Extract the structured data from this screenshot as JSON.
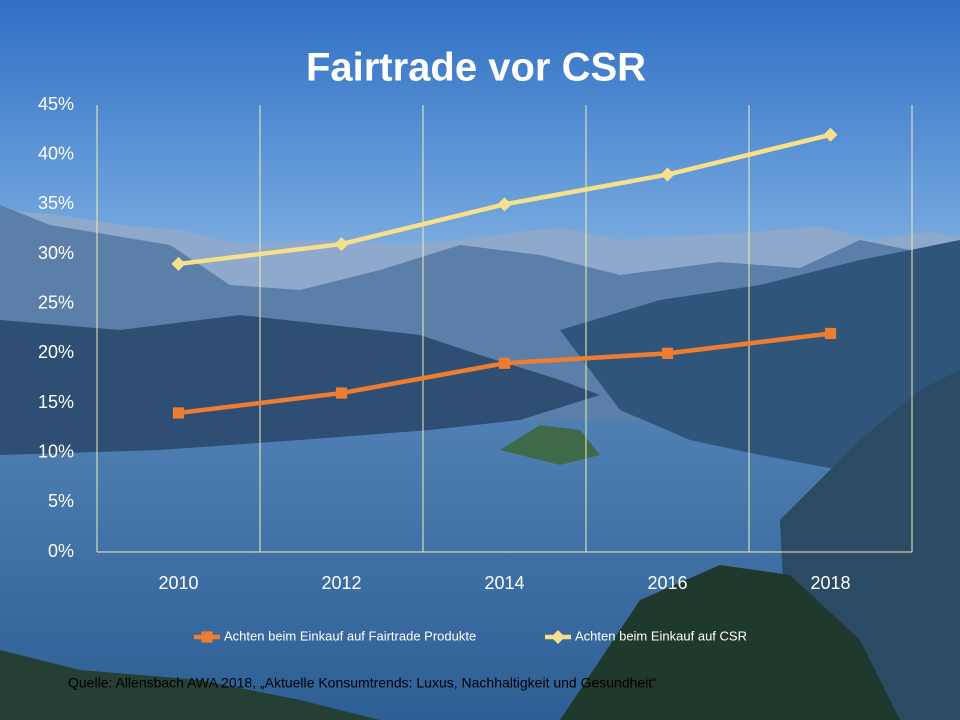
{
  "chart_data": {
    "type": "line",
    "title": "Fairtrade vor CSR",
    "categories": [
      "2010",
      "2012",
      "2014",
      "2016",
      "2018"
    ],
    "series": [
      {
        "name": "Achten beim Einkauf auf Fairtrade Produkte",
        "color": "#ED7D31",
        "marker": "square",
        "values": [
          14,
          16,
          19,
          20,
          22
        ]
      },
      {
        "name": "Achten beim Einkauf auf CSR",
        "color": "#F7E08C",
        "marker": "diamond",
        "values": [
          29,
          31,
          35,
          38,
          42
        ]
      }
    ],
    "ylim": [
      0,
      45
    ],
    "yticks": [
      {
        "value": 0,
        "label": "0%"
      },
      {
        "value": 5,
        "label": "5%"
      },
      {
        "value": 10,
        "label": "10%"
      },
      {
        "value": 15,
        "label": "15%"
      },
      {
        "value": 20,
        "label": "20%"
      },
      {
        "value": 25,
        "label": "25%"
      },
      {
        "value": 30,
        "label": "30%"
      },
      {
        "value": 35,
        "label": "35%"
      },
      {
        "value": 40,
        "label": "40%"
      },
      {
        "value": 45,
        "label": "45%"
      }
    ],
    "grid": "vertical",
    "legend": "bottom",
    "source": "Quelle: Allensbach AWA 2018, „Aktuelle Konsumtrends: Luxus, Nachhaltigkeit und Gesundheit“"
  }
}
